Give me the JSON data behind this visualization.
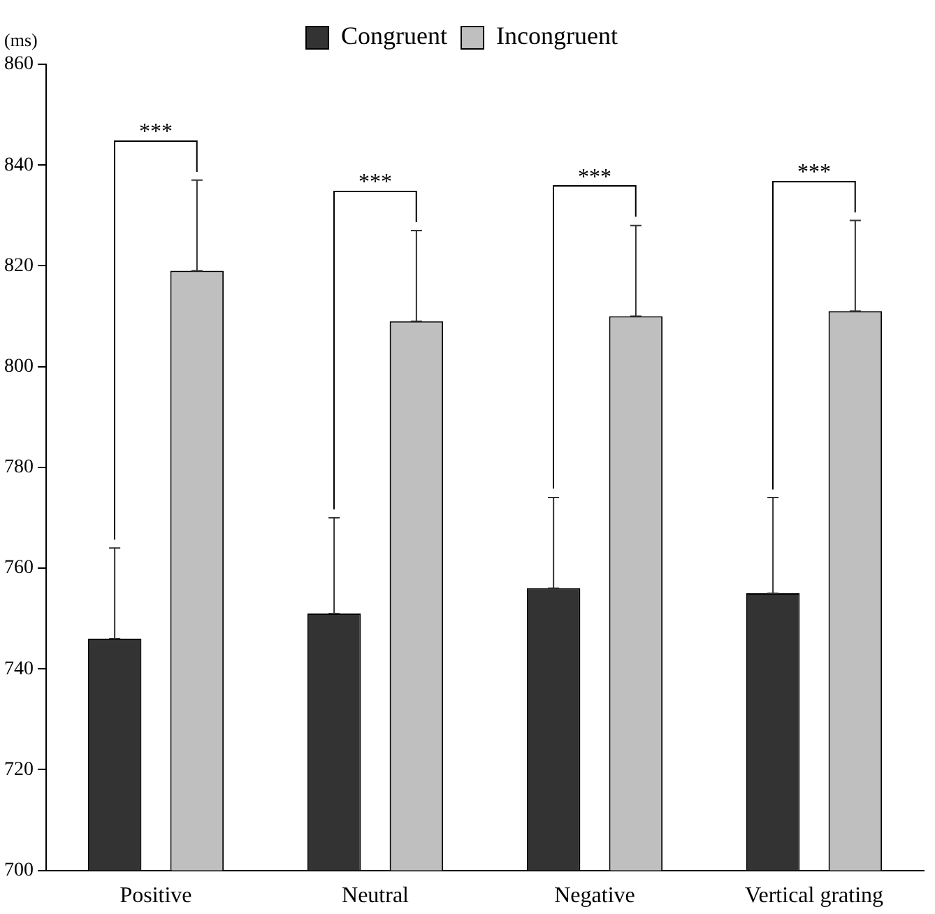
{
  "chart_data": {
    "type": "bar",
    "ylabel": "(ms)",
    "categories": [
      "Positive",
      "Neutral",
      "Negative",
      "Vertical grating"
    ],
    "series": [
      {
        "name": "Congruent",
        "color": "#333333",
        "values": [
          746,
          751,
          756,
          755
        ],
        "errors": [
          [
            746,
            764
          ],
          [
            751,
            770
          ],
          [
            756,
            774
          ],
          [
            755,
            774
          ]
        ]
      },
      {
        "name": "Incongruent",
        "color": "#bfbfbf",
        "values": [
          819,
          809,
          810,
          811
        ],
        "errors": [
          [
            819,
            837
          ],
          [
            809,
            827
          ],
          [
            810,
            828
          ],
          [
            811,
            829
          ]
        ]
      }
    ],
    "ylim": [
      700,
      860
    ],
    "yticks": [
      700,
      720,
      740,
      760,
      780,
      800,
      820,
      840,
      860
    ],
    "grid": false,
    "legend": "top",
    "annotations": [
      "***",
      "***",
      "***",
      "***"
    ]
  }
}
